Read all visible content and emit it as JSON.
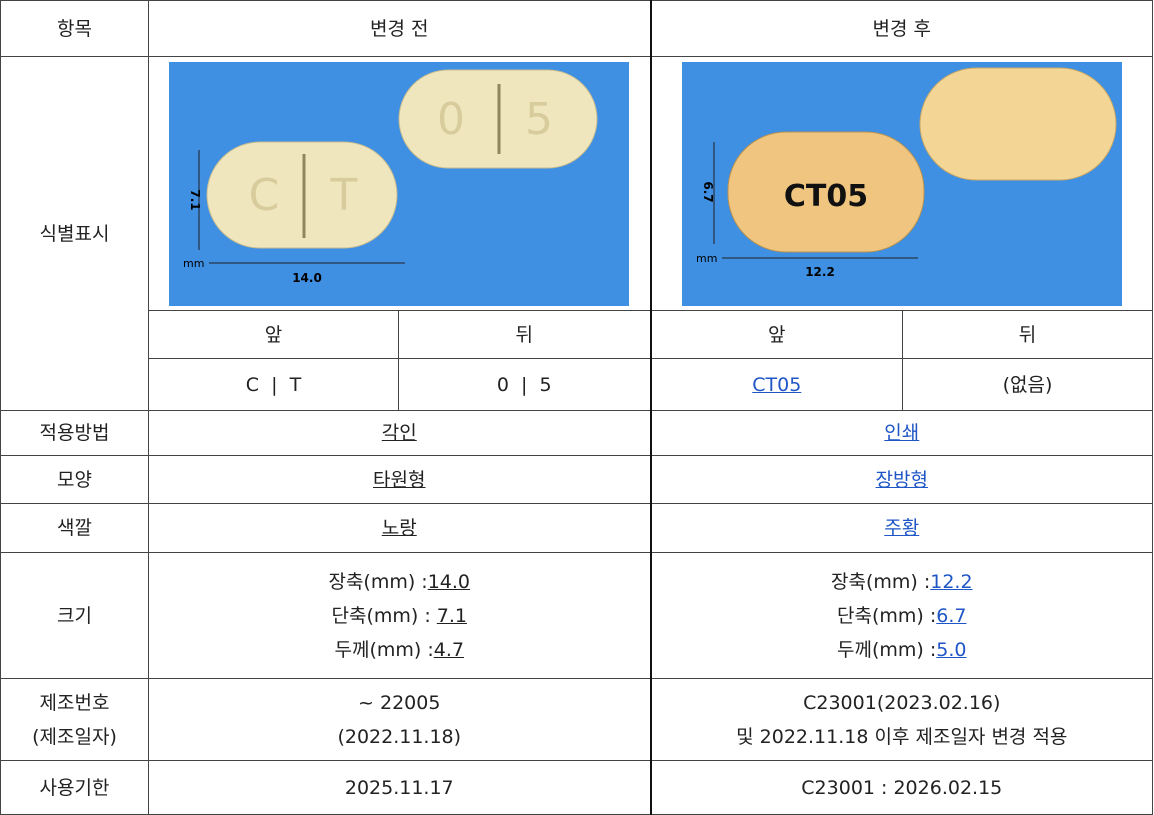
{
  "table": {
    "header": [
      "항목",
      "변경 전",
      "변경 후"
    ],
    "identification": {
      "label": "식별표시",
      "before_image": {
        "front": [
          "C",
          "T"
        ],
        "back": [
          "0",
          "5"
        ],
        "height": "7.1",
        "length": "14.0",
        "unit": "mm"
      },
      "after_image": {
        "front": "CT05",
        "height": "6.7",
        "length": "12.2",
        "unit": "mm"
      },
      "sides": [
        "앞",
        "뒤",
        "앞",
        "뒤"
      ],
      "marks": [
        "C  |  T",
        "0  |  5",
        "CT05",
        "(없음)"
      ]
    },
    "method": {
      "label": "적용방법",
      "before": "각인",
      "after": "인쇄"
    },
    "shape": {
      "label": "모양",
      "before": "타원형",
      "after": "장방형"
    },
    "color": {
      "label": "색깔",
      "before": "노랑",
      "after": "주황"
    },
    "size": {
      "label": "크기",
      "before": [
        {
          "name": "장축(mm) :",
          "value": "14.0"
        },
        {
          "name": "단축(mm) : ",
          "value": "7.1"
        },
        {
          "name": "두께(mm) :",
          "value": "4.7"
        }
      ],
      "after": [
        {
          "name": "장축(mm) :",
          "value": "12.2"
        },
        {
          "name": "단축(mm) :",
          "value": "6.7"
        },
        {
          "name": "두께(mm) :",
          "value": "5.0"
        }
      ]
    },
    "lot": {
      "label": [
        "제조번호",
        "(제조일자)"
      ],
      "before": [
        "~ 22005",
        "(2022.11.18)"
      ],
      "after": [
        "C23001(2023.02.16)",
        "및 2022.11.18 이후 제조일자 변경 적용"
      ]
    },
    "expiry": {
      "label": "사용기한",
      "before": "2025.11.17",
      "after": "C23001 : 2026.02.15"
    }
  }
}
